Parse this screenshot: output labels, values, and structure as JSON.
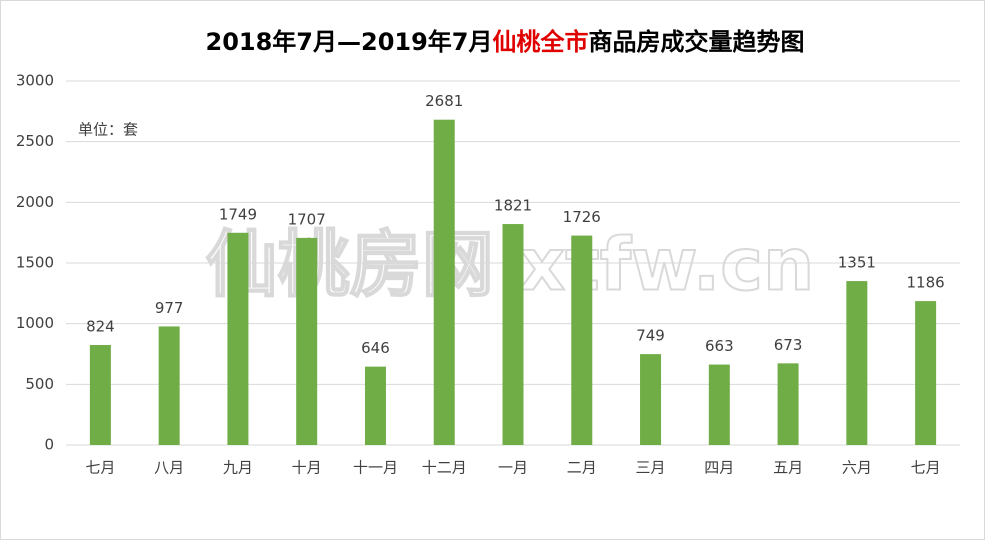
{
  "chart_data": {
    "type": "bar",
    "title": [
      {
        "text": "2018年7月—2019年7月",
        "color": "#000000"
      },
      {
        "text": "仙桃全市",
        "color": "#e00000"
      },
      {
        "text": "商品房成交量趋势图",
        "color": "#000000"
      }
    ],
    "unit_note": "单位：套",
    "watermark": "仙桃房网 xtfw.cn",
    "categories": [
      "七月",
      "八月",
      "九月",
      "十月",
      "十一月",
      "十二月",
      "一月",
      "二月",
      "三月",
      "四月",
      "五月",
      "六月",
      "七月"
    ],
    "values": [
      824,
      977,
      1749,
      1707,
      646,
      2681,
      1821,
      1726,
      749,
      663,
      673,
      1351,
      1186
    ],
    "color": "#70ad47",
    "ylim": [
      0,
      3000
    ],
    "yticks": [
      0,
      500,
      1000,
      1500,
      2000,
      2500,
      3000
    ],
    "grid": true
  }
}
